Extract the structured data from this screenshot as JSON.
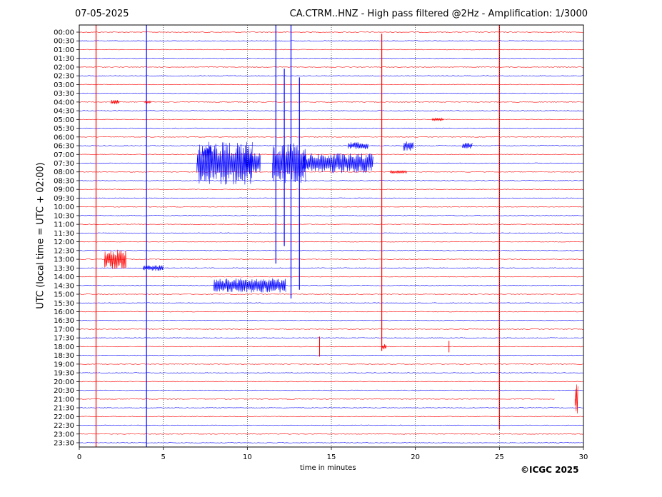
{
  "header": {
    "date": "07-05-2025",
    "title": "CA.CTRM..HNZ - High pass filtered @2Hz - Amplification: 1/3000"
  },
  "credit": "©ICGC 2025",
  "chart_data": {
    "type": "line",
    "xlabel": "time in minutes",
    "ylabel": "UTC (local time = UTC + 02:00)",
    "xlim": [
      0,
      30
    ],
    "xticks": [
      0,
      5,
      10,
      15,
      20,
      25,
      30
    ],
    "grid": "vertical dotted at 5-minute intervals",
    "rows": [
      "00:00",
      "00:30",
      "01:00",
      "01:30",
      "02:00",
      "02:30",
      "03:00",
      "03:30",
      "04:00",
      "04:30",
      "05:00",
      "05:30",
      "06:00",
      "06:30",
      "07:00",
      "07:30",
      "08:00",
      "08:30",
      "09:00",
      "09:30",
      "10:00",
      "10:30",
      "11:00",
      "11:30",
      "12:00",
      "12:30",
      "13:00",
      "13:30",
      "14:00",
      "14:30",
      "15:00",
      "15:30",
      "16:00",
      "16:30",
      "17:00",
      "17:30",
      "18:00",
      "18:30",
      "19:00",
      "19:30",
      "20:00",
      "20:30",
      "21:00",
      "21:30",
      "22:00",
      "22:30",
      "23:00",
      "23:30"
    ],
    "colors": {
      "even_rows": "#ff0000",
      "odd_rows": "#0000ff"
    },
    "events": [
      {
        "row": "00:00",
        "minute": 1.0,
        "amplitude": 12,
        "kind": "spike",
        "span_rows": 48,
        "color": "#ff0000"
      },
      {
        "row": "00:00",
        "minute": 4.0,
        "amplitude": 12,
        "kind": "spike",
        "span_rows": 48,
        "color": "#0000ff"
      },
      {
        "row": "00:00",
        "minute": 25.0,
        "amplitude": 12,
        "kind": "spike",
        "span_rows": 46,
        "color": "#ff0000"
      },
      {
        "row": "00:30",
        "minute": 18.0,
        "amplitude": 10,
        "kind": "spike",
        "span_rows": 36,
        "color": "#ff0000"
      },
      {
        "row": "00:00",
        "minute": 11.7,
        "amplitude": 10,
        "kind": "spike",
        "span_rows": 27,
        "color": "#0000ff"
      },
      {
        "row": "00:00",
        "minute": 12.6,
        "amplitude": 10,
        "kind": "spike",
        "span_rows": 31,
        "color": "#0000ff"
      },
      {
        "row": "02:30",
        "minute": 12.2,
        "amplitude": 8,
        "kind": "spike",
        "span_rows": 20,
        "color": "#0000ff"
      },
      {
        "row": "03:00",
        "minute": 13.1,
        "amplitude": 8,
        "kind": "spike",
        "span_rows": 24,
        "color": "#0000ff"
      },
      {
        "row": "04:00",
        "minute": 1.9,
        "amplitude": 3,
        "kind": "burst",
        "duration": 0.5,
        "color": "#ff0000"
      },
      {
        "row": "04:00",
        "minute": 3.9,
        "amplitude": 2,
        "kind": "burst",
        "duration": 0.4,
        "color": "#ff0000"
      },
      {
        "row": "05:00",
        "minute": 21.0,
        "amplitude": 2,
        "kind": "burst",
        "duration": 0.7,
        "color": "#ff0000"
      },
      {
        "row": "06:30",
        "minute": 16.0,
        "amplitude": 5,
        "kind": "burst",
        "duration": 1.2,
        "color": "#0000ff"
      },
      {
        "row": "06:30",
        "minute": 19.3,
        "amplitude": 7,
        "kind": "burst",
        "duration": 0.6,
        "color": "#0000ff"
      },
      {
        "row": "06:30",
        "minute": 22.8,
        "amplitude": 4,
        "kind": "burst",
        "duration": 0.6,
        "color": "#0000ff"
      },
      {
        "row": "07:00",
        "minute": 7.3,
        "amplitude": 12,
        "kind": "burst",
        "duration": 0.6,
        "color": "#0000ff"
      },
      {
        "row": "07:30",
        "minute": 7.0,
        "amplitude": 30,
        "kind": "burst",
        "duration": 3.3,
        "color": "#0000ff"
      },
      {
        "row": "07:30",
        "minute": 9.8,
        "amplitude": 16,
        "kind": "burst",
        "duration": 1.0,
        "color": "#0000ff"
      },
      {
        "row": "07:30",
        "minute": 11.5,
        "amplitude": 28,
        "kind": "burst",
        "duration": 2.0,
        "color": "#0000ff"
      },
      {
        "row": "07:30",
        "minute": 13.3,
        "amplitude": 14,
        "kind": "burst",
        "duration": 4.2,
        "color": "#0000ff"
      },
      {
        "row": "08:00",
        "minute": 18.5,
        "amplitude": 2,
        "kind": "burst",
        "duration": 1.0,
        "color": "#ff0000"
      },
      {
        "row": "13:00",
        "minute": 1.5,
        "amplitude": 14,
        "kind": "burst",
        "duration": 1.3,
        "color": "#ff0000"
      },
      {
        "row": "13:30",
        "minute": 3.8,
        "amplitude": 4,
        "kind": "burst",
        "duration": 1.2,
        "color": "#0000ff"
      },
      {
        "row": "14:30",
        "minute": 8.0,
        "amplitude": 10,
        "kind": "burst",
        "duration": 4.3,
        "color": "#0000ff"
      },
      {
        "row": "18:00",
        "minute": 14.3,
        "amplitude": 14,
        "kind": "spike",
        "span_rows": 1,
        "color": "#ff0000"
      },
      {
        "row": "18:00",
        "minute": 18.0,
        "amplitude": 4,
        "kind": "burst",
        "duration": 0.3,
        "color": "#ff0000"
      },
      {
        "row": "18:00",
        "minute": 22.0,
        "amplitude": 8,
        "kind": "spike",
        "span_rows": 1,
        "color": "#ff0000"
      },
      {
        "row": "21:00",
        "minute": 29.5,
        "amplitude": 22,
        "kind": "burst",
        "duration": 0.2,
        "color": "#ff0000"
      }
    ],
    "gaps": [
      {
        "row": "21:00",
        "from_minute": 28.3,
        "to_minute": 30.0
      }
    ]
  }
}
